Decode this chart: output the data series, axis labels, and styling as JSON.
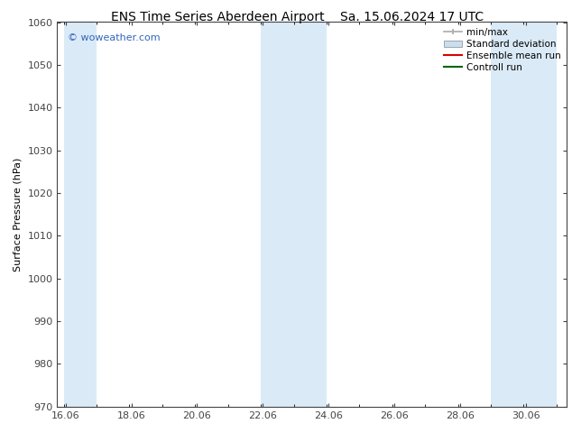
{
  "title_left": "ENS Time Series Aberdeen Airport",
  "title_right": "Sa. 15.06.2024 17 UTC",
  "ylabel": "Surface Pressure (hPa)",
  "ylim": [
    970,
    1060
  ],
  "yticks": [
    970,
    980,
    990,
    1000,
    1010,
    1020,
    1030,
    1040,
    1050,
    1060
  ],
  "xlim_start": 15.8,
  "xlim_end": 31.3,
  "xtick_positions": [
    16.06,
    18.06,
    20.06,
    22.06,
    24.06,
    26.06,
    28.06,
    30.06
  ],
  "xlabel_labels": [
    "16.06",
    "18.06",
    "20.06",
    "22.06",
    "24.06",
    "26.06",
    "28.06",
    "30.06"
  ],
  "shaded_bands": [
    {
      "x_start": 16.0,
      "x_end": 17.0
    },
    {
      "x_start": 22.0,
      "x_end": 24.0
    },
    {
      "x_start": 29.0,
      "x_end": 31.0
    }
  ],
  "band_color": "#daeaf7",
  "watermark": "© woweather.com",
  "watermark_color": "#3366bb",
  "legend_items": [
    {
      "label": "min/max",
      "color": "#aaaaaa",
      "type": "errorbar"
    },
    {
      "label": "Standard deviation",
      "color": "#c8dff0",
      "type": "fill"
    },
    {
      "label": "Ensemble mean run",
      "color": "#dd0000",
      "type": "line"
    },
    {
      "label": "Controll run",
      "color": "#006600",
      "type": "line"
    }
  ],
  "bg_color": "#ffffff",
  "plot_bg_color": "#ffffff",
  "spine_color": "#444444",
  "title_fontsize": 10,
  "axis_label_fontsize": 8,
  "tick_fontsize": 8,
  "legend_fontsize": 7.5,
  "watermark_fontsize": 8
}
